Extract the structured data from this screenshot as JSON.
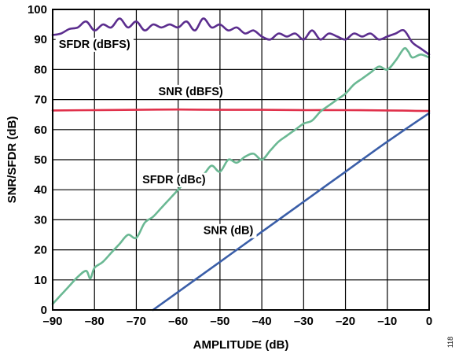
{
  "chart_data": {
    "type": "line",
    "xlabel": "AMPLITUDE (dB)",
    "ylabel": "SNR/SFDR (dB)",
    "xlim": [
      -90,
      0
    ],
    "ylim": [
      0,
      100
    ],
    "x_ticks": [
      -90,
      -80,
      -70,
      -60,
      -50,
      -40,
      -30,
      -20,
      -10,
      0
    ],
    "y_ticks": [
      0,
      10,
      20,
      30,
      40,
      50,
      60,
      70,
      80,
      90,
      100
    ],
    "grid": true,
    "legend": "none",
    "figure_id": "118",
    "series": [
      {
        "name": "SFDR (dBFS)",
        "color": "#5b2d8e",
        "label_at": [
          -80,
          87.2
        ],
        "x": [
          -90,
          -88,
          -86,
          -84,
          -82,
          -80,
          -78,
          -76,
          -74,
          -72,
          -70,
          -68,
          -66,
          -64,
          -62,
          -60,
          -58,
          -56,
          -54,
          -52,
          -50,
          -48,
          -46,
          -44,
          -42,
          -40,
          -38,
          -36,
          -34,
          -32,
          -30,
          -28,
          -26,
          -24,
          -22,
          -20,
          -18,
          -16,
          -14,
          -12,
          -10,
          -8,
          -6,
          -4,
          -2,
          0
        ],
        "values": [
          91.5,
          92,
          93.5,
          94,
          96,
          93,
          95,
          94,
          97,
          94,
          96,
          93,
          95,
          94,
          95,
          94,
          96,
          93,
          97,
          94,
          95,
          93,
          94,
          92,
          93,
          91,
          90,
          92,
          91,
          92,
          90,
          93,
          90,
          92,
          91,
          90,
          92,
          91,
          92,
          90,
          91,
          92,
          93,
          89,
          87,
          85
        ]
      },
      {
        "name": "SNR (dBFS)",
        "color": "#e0314b",
        "label_at": [
          -57,
          71.5
        ],
        "x": [
          -90,
          -80,
          -70,
          -60,
          -50,
          -40,
          -30,
          -20,
          -10,
          -5,
          0
        ],
        "values": [
          66.4,
          66.5,
          66.6,
          66.7,
          66.6,
          66.6,
          66.5,
          66.5,
          66.4,
          66.3,
          66.2
        ]
      },
      {
        "name": "SFDR (dBc)",
        "color": "#6ab893",
        "label_at": [
          -61,
          42.2
        ],
        "x": [
          -90,
          -88,
          -86,
          -84,
          -82,
          -81,
          -80,
          -78,
          -76,
          -74,
          -72,
          -70,
          -68,
          -66,
          -64,
          -62,
          -60,
          -58,
          -56,
          -54,
          -52,
          -50,
          -48,
          -46,
          -44,
          -42,
          -40,
          -38,
          -36,
          -34,
          -32,
          -30,
          -28,
          -26,
          -24,
          -22,
          -20,
          -18,
          -16,
          -14,
          -12,
          -10,
          -8,
          -6,
          -5,
          -4,
          -2,
          0
        ],
        "values": [
          2,
          5,
          8,
          11,
          13,
          10.5,
          14,
          16,
          19,
          22,
          25,
          24,
          29,
          31,
          34,
          37,
          40,
          43,
          44,
          45,
          48,
          46,
          50,
          49,
          51,
          52,
          50,
          53,
          56,
          58,
          60,
          62,
          63,
          66,
          68,
          70,
          72,
          75,
          77,
          79,
          81,
          80,
          83,
          87,
          86,
          84,
          85,
          84
        ]
      },
      {
        "name": "SNR (dB)",
        "color": "#3a5ea8",
        "label_at": [
          -48,
          25.2
        ],
        "x": [
          -66,
          -60,
          -50,
          -40,
          -30,
          -20,
          -10,
          0
        ],
        "values": [
          0,
          6,
          16,
          26,
          36,
          46,
          56,
          65.5
        ]
      }
    ]
  }
}
